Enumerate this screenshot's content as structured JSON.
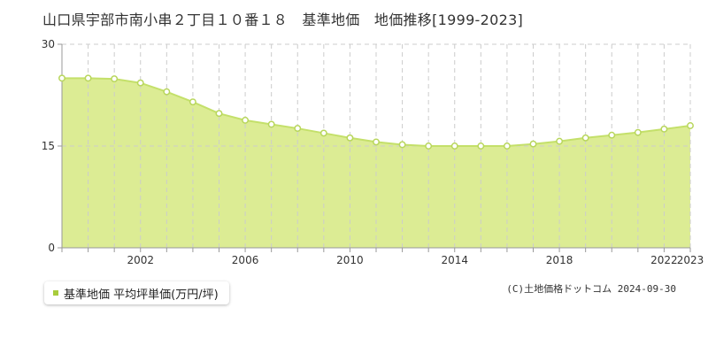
{
  "title": "山口県宇部市南小串２丁目１０番１８　基準地価　地価推移[1999-2023]",
  "legend": {
    "label": "基準地価 平均坪単価(万円/坪)"
  },
  "copyright": "(C)土地価格ドットコム 2024-09-30",
  "colors": {
    "fill": "#dcec94",
    "line": "#c4e06a",
    "point_fill": "#ffffff",
    "point_stroke": "#b8d65c",
    "grid": "#cccccc",
    "legend_marker": "#a8cc3c"
  },
  "chart_data": {
    "type": "area",
    "xlim": [
      1999,
      2023
    ],
    "ylim": [
      0,
      30
    ],
    "yticks": [
      0,
      15,
      30
    ],
    "xticks": [
      2002,
      2006,
      2010,
      2014,
      2018,
      2022,
      2023
    ],
    "x": [
      1999,
      2000,
      2001,
      2002,
      2003,
      2004,
      2005,
      2006,
      2007,
      2008,
      2009,
      2010,
      2011,
      2012,
      2013,
      2014,
      2015,
      2016,
      2017,
      2018,
      2019,
      2020,
      2021,
      2022,
      2023
    ],
    "series": [
      {
        "name": "基準地価 平均坪単価(万円/坪)",
        "values": [
          25.0,
          25.0,
          24.9,
          24.3,
          23.0,
          21.5,
          19.8,
          18.8,
          18.2,
          17.6,
          16.9,
          16.2,
          15.6,
          15.2,
          15.0,
          15.0,
          15.0,
          15.0,
          15.3,
          15.7,
          16.2,
          16.6,
          17.0,
          17.5,
          18.0
        ]
      }
    ],
    "grid": true,
    "legend_position": "bottom-left"
  }
}
